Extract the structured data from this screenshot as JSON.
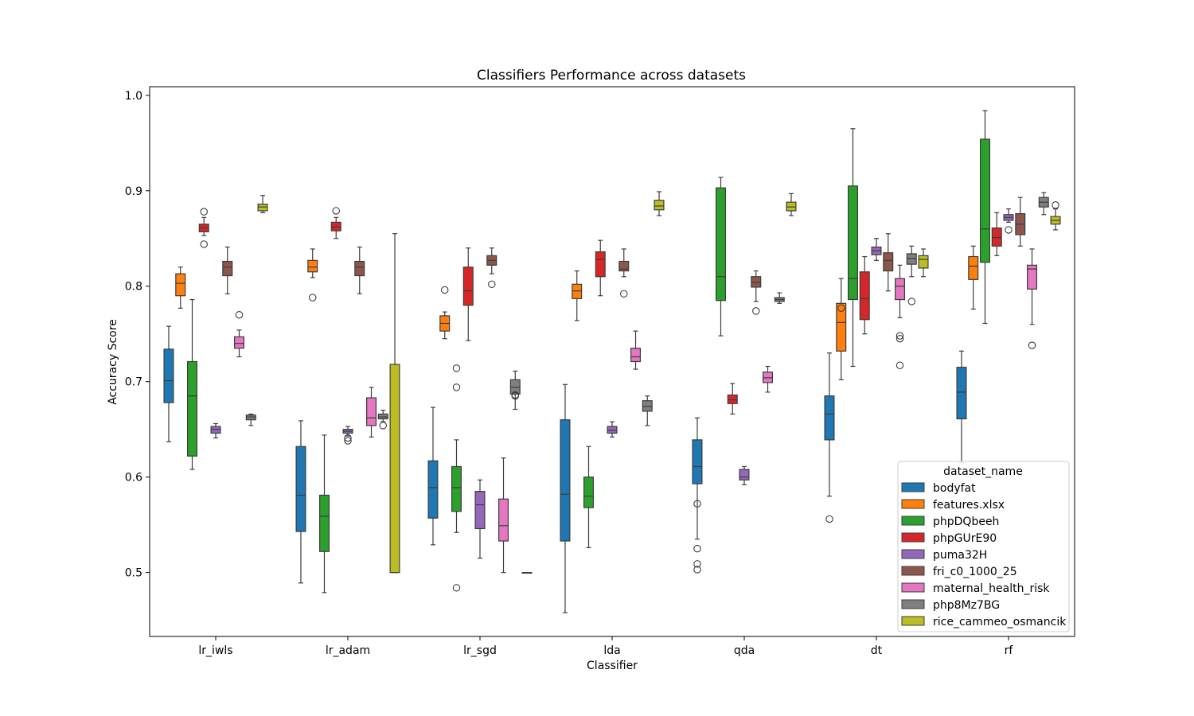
{
  "chart_data": {
    "type": "box",
    "title": "Classifiers Performance across datasets",
    "xlabel": "Classifier",
    "ylabel": "Accuracy Score",
    "ylim": [
      0.433,
      1.009
    ],
    "yticks": [
      "0.5",
      "0.6",
      "0.7",
      "0.8",
      "0.9",
      "1.0"
    ],
    "categories": [
      "lr_iwls",
      "lr_adam",
      "lr_sgd",
      "lda",
      "qda",
      "dt",
      "rf"
    ],
    "legend": {
      "title": "dataset_name",
      "placement": "lower-right"
    },
    "series": [
      {
        "name": "bodyfat",
        "color": "#1f77b4",
        "boxes": [
          {
            "wl": 0.637,
            "q1": 0.678,
            "med": 0.701,
            "q3": 0.734,
            "wh": 0.758,
            "out": []
          },
          {
            "wl": 0.489,
            "q1": 0.543,
            "med": 0.581,
            "q3": 0.632,
            "wh": 0.659,
            "out": []
          },
          {
            "wl": 0.529,
            "q1": 0.557,
            "med": 0.589,
            "q3": 0.617,
            "wh": 0.673,
            "out": []
          },
          {
            "wl": 0.458,
            "q1": 0.533,
            "med": 0.582,
            "q3": 0.66,
            "wh": 0.697,
            "out": []
          },
          {
            "wl": 0.535,
            "q1": 0.593,
            "med": 0.611,
            "q3": 0.639,
            "wh": 0.662,
            "out": [
              0.572,
              0.525,
              0.509,
              0.503
            ]
          },
          {
            "wl": 0.58,
            "q1": 0.639,
            "med": 0.666,
            "q3": 0.685,
            "wh": 0.73,
            "out": [
              0.556
            ]
          },
          {
            "wl": 0.615,
            "q1": 0.661,
            "med": 0.689,
            "q3": 0.715,
            "wh": 0.732,
            "out": []
          }
        ]
      },
      {
        "name": "features.xlsx",
        "color": "#ff7f0e",
        "boxes": [
          {
            "wl": 0.777,
            "q1": 0.79,
            "med": 0.803,
            "q3": 0.813,
            "wh": 0.82,
            "out": []
          },
          {
            "wl": 0.809,
            "q1": 0.815,
            "med": 0.82,
            "q3": 0.827,
            "wh": 0.839,
            "out": [
              0.788
            ]
          },
          {
            "wl": 0.745,
            "q1": 0.753,
            "med": 0.761,
            "q3": 0.769,
            "wh": 0.773,
            "out": [
              0.796
            ]
          },
          {
            "wl": 0.764,
            "q1": 0.787,
            "med": 0.795,
            "q3": 0.802,
            "wh": 0.816,
            "out": []
          },
          null,
          {
            "wl": 0.702,
            "q1": 0.732,
            "med": 0.762,
            "q3": 0.782,
            "wh": 0.808,
            "out": [
              0.777
            ]
          },
          {
            "wl": 0.776,
            "q1": 0.807,
            "med": 0.821,
            "q3": 0.831,
            "wh": 0.842,
            "out": []
          }
        ]
      },
      {
        "name": "phpDQbeeh",
        "color": "#2ca02c",
        "boxes": [
          {
            "wl": 0.608,
            "q1": 0.622,
            "med": 0.685,
            "q3": 0.721,
            "wh": 0.786,
            "out": []
          },
          {
            "wl": 0.479,
            "q1": 0.522,
            "med": 0.559,
            "q3": 0.581,
            "wh": 0.644,
            "out": []
          },
          {
            "wl": 0.542,
            "q1": 0.564,
            "med": 0.589,
            "q3": 0.611,
            "wh": 0.639,
            "out": [
              0.714,
              0.694,
              0.484
            ]
          },
          {
            "wl": 0.526,
            "q1": 0.568,
            "med": 0.58,
            "q3": 0.6,
            "wh": 0.632,
            "out": []
          },
          {
            "wl": 0.748,
            "q1": 0.785,
            "med": 0.81,
            "q3": 0.903,
            "wh": 0.914,
            "out": []
          },
          {
            "wl": 0.716,
            "q1": 0.786,
            "med": 0.808,
            "q3": 0.905,
            "wh": 0.965,
            "out": []
          },
          {
            "wl": 0.761,
            "q1": 0.825,
            "med": 0.86,
            "q3": 0.954,
            "wh": 0.984,
            "out": []
          }
        ]
      },
      {
        "name": "phpGUrE90",
        "color": "#d62728",
        "boxes": [
          {
            "wl": 0.853,
            "q1": 0.857,
            "med": 0.861,
            "q3": 0.865,
            "wh": 0.872,
            "out": [
              0.878,
              0.844
            ]
          },
          {
            "wl": 0.85,
            "q1": 0.858,
            "med": 0.862,
            "q3": 0.867,
            "wh": 0.872,
            "out": [
              0.879
            ]
          },
          {
            "wl": 0.743,
            "q1": 0.78,
            "med": 0.795,
            "q3": 0.82,
            "wh": 0.84,
            "out": []
          },
          {
            "wl": 0.79,
            "q1": 0.81,
            "med": 0.828,
            "q3": 0.836,
            "wh": 0.848,
            "out": []
          },
          {
            "wl": 0.666,
            "q1": 0.677,
            "med": 0.681,
            "q3": 0.686,
            "wh": 0.698,
            "out": []
          },
          {
            "wl": 0.75,
            "q1": 0.765,
            "med": 0.787,
            "q3": 0.815,
            "wh": 0.831,
            "out": []
          },
          {
            "wl": 0.832,
            "q1": 0.842,
            "med": 0.851,
            "q3": 0.861,
            "wh": 0.877,
            "out": []
          }
        ]
      },
      {
        "name": "puma32H",
        "color": "#9467bd",
        "boxes": [
          {
            "wl": 0.641,
            "q1": 0.646,
            "med": 0.65,
            "q3": 0.653,
            "wh": 0.656,
            "out": []
          },
          {
            "wl": 0.643,
            "q1": 0.646,
            "med": 0.648,
            "q3": 0.65,
            "wh": 0.653,
            "out": [
              0.641,
              0.638
            ]
          },
          {
            "wl": 0.515,
            "q1": 0.546,
            "med": 0.571,
            "q3": 0.585,
            "wh": 0.597,
            "out": []
          },
          {
            "wl": 0.642,
            "q1": 0.646,
            "med": 0.649,
            "q3": 0.653,
            "wh": 0.658,
            "out": []
          },
          {
            "wl": 0.592,
            "q1": 0.597,
            "med": 0.6,
            "q3": 0.608,
            "wh": 0.611,
            "out": []
          },
          {
            "wl": 0.827,
            "q1": 0.833,
            "med": 0.837,
            "q3": 0.841,
            "wh": 0.85,
            "out": []
          },
          {
            "wl": 0.867,
            "q1": 0.869,
            "med": 0.872,
            "q3": 0.875,
            "wh": 0.881,
            "out": [
              0.859
            ]
          }
        ]
      },
      {
        "name": "fri_c0_1000_25",
        "color": "#8c564b",
        "boxes": [
          {
            "wl": 0.792,
            "q1": 0.811,
            "med": 0.82,
            "q3": 0.826,
            "wh": 0.841,
            "out": []
          },
          {
            "wl": 0.792,
            "q1": 0.811,
            "med": 0.82,
            "q3": 0.826,
            "wh": 0.841,
            "out": []
          },
          {
            "wl": 0.813,
            "q1": 0.822,
            "med": 0.827,
            "q3": 0.832,
            "wh": 0.84,
            "out": [
              0.802
            ]
          },
          {
            "wl": 0.81,
            "q1": 0.816,
            "med": 0.818,
            "q3": 0.826,
            "wh": 0.839,
            "out": [
              0.792
            ]
          },
          {
            "wl": 0.784,
            "q1": 0.799,
            "med": 0.804,
            "q3": 0.81,
            "wh": 0.816,
            "out": [
              0.774
            ]
          },
          {
            "wl": 0.795,
            "q1": 0.816,
            "med": 0.827,
            "q3": 0.835,
            "wh": 0.855,
            "out": []
          },
          {
            "wl": 0.842,
            "q1": 0.854,
            "med": 0.865,
            "q3": 0.876,
            "wh": 0.893,
            "out": []
          }
        ]
      },
      {
        "name": "maternal_health_risk",
        "color": "#e377c2",
        "boxes": [
          {
            "wl": 0.726,
            "q1": 0.735,
            "med": 0.74,
            "q3": 0.747,
            "wh": 0.754,
            "out": [
              0.77
            ]
          },
          {
            "wl": 0.642,
            "q1": 0.654,
            "med": 0.662,
            "q3": 0.683,
            "wh": 0.694,
            "out": []
          },
          {
            "wl": 0.5,
            "q1": 0.533,
            "med": 0.549,
            "q3": 0.577,
            "wh": 0.62,
            "out": []
          },
          {
            "wl": 0.713,
            "q1": 0.721,
            "med": 0.726,
            "q3": 0.735,
            "wh": 0.753,
            "out": []
          },
          {
            "wl": 0.689,
            "q1": 0.699,
            "med": 0.704,
            "q3": 0.71,
            "wh": 0.716,
            "out": []
          },
          {
            "wl": 0.767,
            "q1": 0.786,
            "med": 0.8,
            "q3": 0.808,
            "wh": 0.822,
            "out": [
              0.748,
              0.745,
              0.717
            ]
          },
          {
            "wl": 0.76,
            "q1": 0.797,
            "med": 0.818,
            "q3": 0.822,
            "wh": 0.839,
            "out": [
              0.738
            ]
          }
        ]
      },
      {
        "name": "php8Mz7BG",
        "color": "#7f7f7f",
        "boxes": [
          {
            "wl": 0.654,
            "q1": 0.66,
            "med": 0.663,
            "q3": 0.665,
            "wh": 0.666,
            "out": []
          },
          {
            "wl": 0.658,
            "q1": 0.661,
            "med": 0.663,
            "q3": 0.666,
            "wh": 0.67,
            "out": [
              0.654
            ]
          },
          {
            "wl": 0.671,
            "q1": 0.687,
            "med": 0.694,
            "q3": 0.702,
            "wh": 0.711,
            "out": [
              0.686,
              0.685
            ]
          },
          {
            "wl": 0.654,
            "q1": 0.669,
            "med": 0.674,
            "q3": 0.68,
            "wh": 0.685,
            "out": []
          },
          {
            "wl": 0.782,
            "q1": 0.784,
            "med": 0.786,
            "q3": 0.788,
            "wh": 0.793,
            "out": []
          },
          {
            "wl": 0.81,
            "q1": 0.823,
            "med": 0.829,
            "q3": 0.834,
            "wh": 0.842,
            "out": [
              0.784
            ]
          },
          {
            "wl": 0.875,
            "q1": 0.883,
            "med": 0.888,
            "q3": 0.893,
            "wh": 0.898,
            "out": []
          }
        ]
      },
      {
        "name": "rice_cammeo_osmancik",
        "color": "#bcbd22",
        "boxes": [
          {
            "wl": 0.877,
            "q1": 0.879,
            "med": 0.883,
            "q3": 0.886,
            "wh": 0.895,
            "out": []
          },
          {
            "wl": 0.5,
            "q1": 0.5,
            "med": 0.5,
            "q3": 0.718,
            "wh": 0.855,
            "out": []
          },
          {
            "wl": 0.5,
            "q1": 0.5,
            "med": 0.5,
            "q3": 0.5,
            "wh": 0.5,
            "out": []
          },
          {
            "wl": 0.874,
            "q1": 0.88,
            "med": 0.884,
            "q3": 0.89,
            "wh": 0.899,
            "out": []
          },
          {
            "wl": 0.874,
            "q1": 0.879,
            "med": 0.883,
            "q3": 0.888,
            "wh": 0.897,
            "out": []
          },
          {
            "wl": 0.81,
            "q1": 0.819,
            "med": 0.828,
            "q3": 0.832,
            "wh": 0.839,
            "out": []
          },
          {
            "wl": 0.859,
            "q1": 0.865,
            "med": 0.869,
            "q3": 0.873,
            "wh": 0.881,
            "out": [
              0.885
            ]
          }
        ]
      }
    ]
  }
}
